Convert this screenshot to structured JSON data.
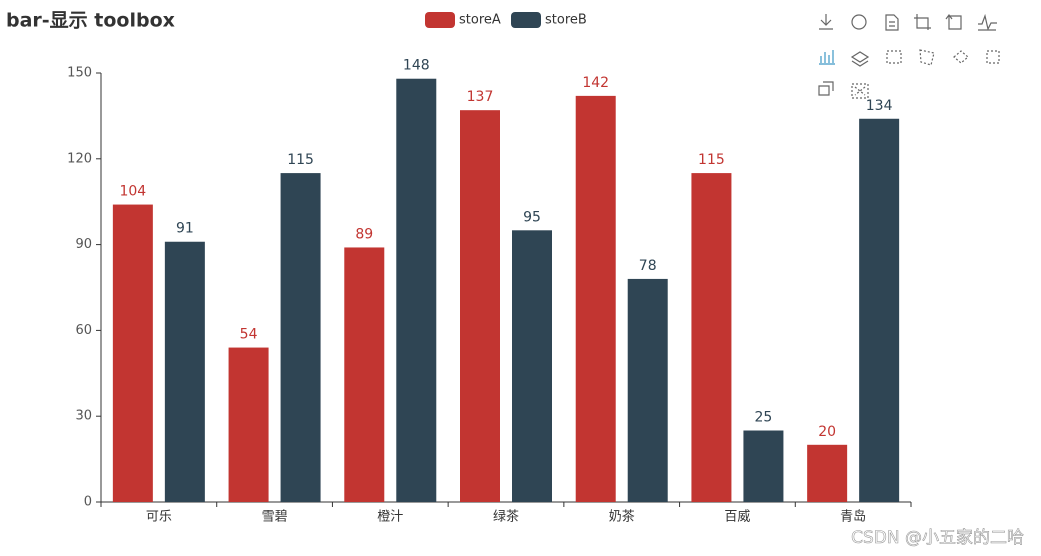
{
  "chart_data": {
    "type": "bar",
    "title": "bar-显示 toolbox",
    "categories": [
      "可乐",
      "雪碧",
      "橙汁",
      "绿茶",
      "奶茶",
      "百威",
      "青岛"
    ],
    "series": [
      {
        "name": "storeA",
        "color": "#c23531",
        "values": [
          104,
          54,
          89,
          137,
          142,
          115,
          20
        ]
      },
      {
        "name": "storeB",
        "color": "#2f4554",
        "values": [
          91,
          115,
          148,
          95,
          78,
          25,
          134
        ]
      }
    ],
    "ylim": [
      0,
      150
    ],
    "yticks": [
      0,
      30,
      60,
      90,
      120,
      150
    ],
    "grid": false,
    "watermark": "CSDN @小五家的二哈"
  }
}
